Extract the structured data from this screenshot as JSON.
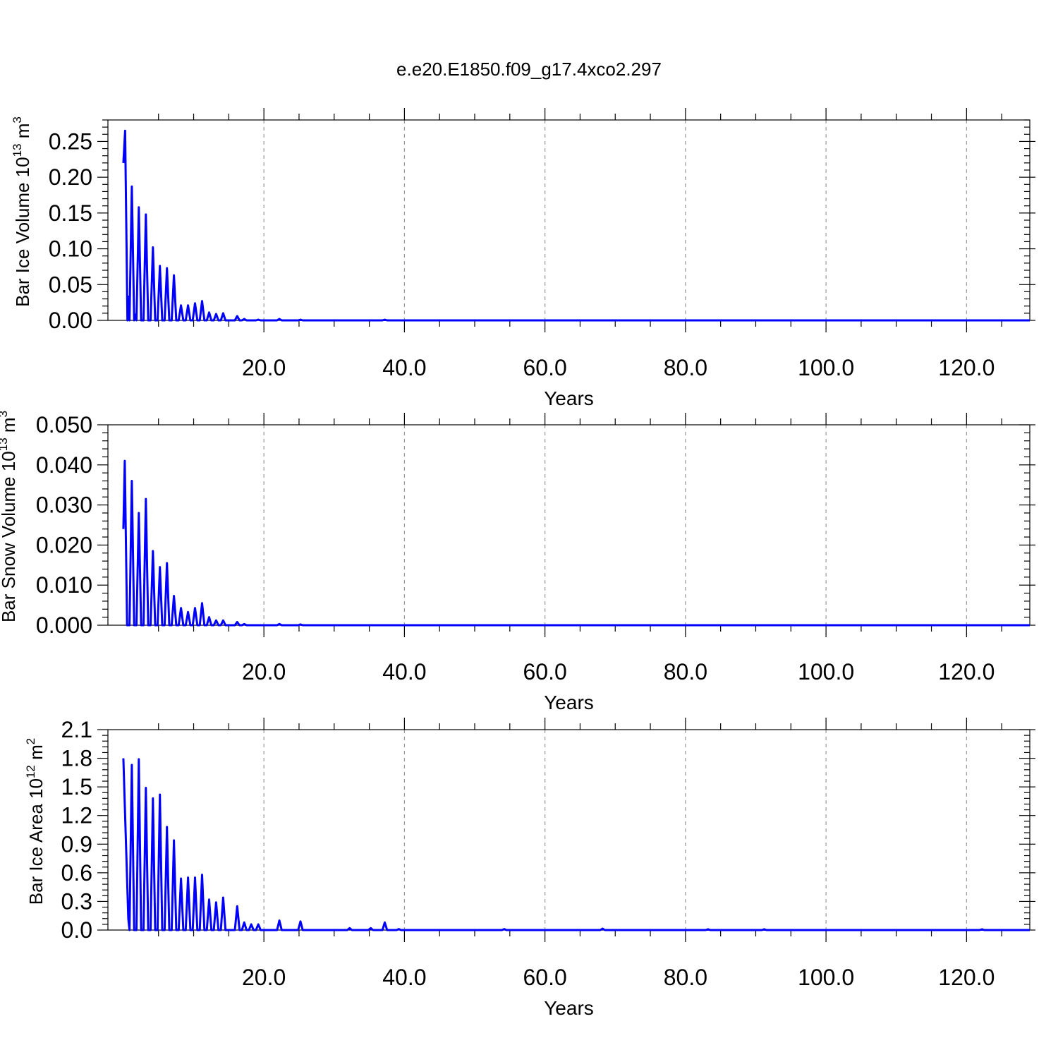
{
  "title": "e.e20.E1850.f09_g17.4xco2.297",
  "chart_data": [
    {
      "type": "line",
      "xlabel": "Years",
      "ylabel": "Bar Ice Volume 10",
      "ylabel_exp": "13",
      "ylabel_unit": " m",
      "ylabel_unit_exp": "3",
      "xlim": [
        -2.2,
        129
      ],
      "ylim": [
        0,
        0.28
      ],
      "xticks": [
        20,
        40,
        60,
        80,
        100,
        120
      ],
      "xtick_labels": [
        "20.0",
        "40.0",
        "60.0",
        "80.0",
        "100.0",
        "120.0"
      ],
      "yticks": [
        0,
        0.05,
        0.1,
        0.15,
        0.2,
        0.25
      ],
      "ytick_labels": [
        "0.00",
        "0.05",
        "0.10",
        "0.15",
        "0.20",
        "0.25"
      ],
      "grid": "vertical dashed",
      "color": "#0000ff",
      "start_value": 0.22,
      "peaks": [
        [
          0.25,
          0.265
        ],
        [
          1.2,
          0.187
        ],
        [
          2.2,
          0.158
        ],
        [
          3.2,
          0.148
        ],
        [
          4.2,
          0.102
        ],
        [
          5.2,
          0.076
        ],
        [
          6.2,
          0.073
        ],
        [
          7.2,
          0.063
        ],
        [
          8.2,
          0.021
        ],
        [
          9.2,
          0.021
        ],
        [
          10.2,
          0.024
        ],
        [
          11.2,
          0.027
        ],
        [
          12.2,
          0.011
        ],
        [
          13.2,
          0.009
        ],
        [
          14.2,
          0.01
        ],
        [
          16.2,
          0.006
        ],
        [
          17.2,
          0.002
        ],
        [
          19.2,
          0.001
        ],
        [
          22.2,
          0.002
        ],
        [
          25.2,
          0.001
        ],
        [
          37.2,
          0.001
        ]
      ],
      "troughs": [
        [
          0.75,
          0.033
        ],
        [
          1.7,
          0.008
        ]
      ]
    },
    {
      "type": "line",
      "xlabel": "Years",
      "ylabel": "Bar Snow Volume 10",
      "ylabel_exp": "13",
      "ylabel_unit": " m",
      "ylabel_unit_exp": "3",
      "xlim": [
        -2.2,
        129
      ],
      "ylim": [
        0,
        0.05
      ],
      "xticks": [
        20,
        40,
        60,
        80,
        100,
        120
      ],
      "xtick_labels": [
        "20.0",
        "40.0",
        "60.0",
        "80.0",
        "100.0",
        "120.0"
      ],
      "yticks": [
        0,
        0.01,
        0.02,
        0.03,
        0.04,
        0.05
      ],
      "ytick_labels": [
        "0.000",
        "0.010",
        "0.020",
        "0.030",
        "0.040",
        "0.050"
      ],
      "grid": "vertical dashed",
      "color": "#0000ff",
      "start_value": 0.024,
      "peaks": [
        [
          0.2,
          0.041
        ],
        [
          1.2,
          0.036
        ],
        [
          2.2,
          0.028
        ],
        [
          3.2,
          0.0315
        ],
        [
          4.2,
          0.0185
        ],
        [
          5.2,
          0.0145
        ],
        [
          6.2,
          0.0155
        ],
        [
          7.2,
          0.0073
        ],
        [
          8.2,
          0.0043
        ],
        [
          9.2,
          0.0033
        ],
        [
          10.2,
          0.0043
        ],
        [
          11.2,
          0.0055
        ],
        [
          12.2,
          0.002
        ],
        [
          13.2,
          0.0012
        ],
        [
          14.2,
          0.0012
        ],
        [
          16.2,
          0.0008
        ],
        [
          17.2,
          0.0003
        ],
        [
          22.2,
          0.0003
        ],
        [
          25.2,
          0.0002
        ]
      ],
      "troughs": []
    },
    {
      "type": "line",
      "xlabel": "Years",
      "ylabel": "Bar Ice Area 10",
      "ylabel_exp": "12",
      "ylabel_unit": " m",
      "ylabel_unit_exp": "2",
      "xlim": [
        -2.2,
        129
      ],
      "ylim": [
        0,
        2.1
      ],
      "xticks": [
        20,
        40,
        60,
        80,
        100,
        120
      ],
      "xtick_labels": [
        "20.0",
        "40.0",
        "60.0",
        "80.0",
        "100.0",
        "120.0"
      ],
      "yticks": [
        0,
        0.3,
        0.6,
        0.9,
        1.2,
        1.5,
        1.8,
        2.1
      ],
      "ytick_labels": [
        "0.0",
        "0.3",
        "0.6",
        "0.9",
        "1.2",
        "1.5",
        "1.8",
        "2.1"
      ],
      "grid": "vertical dashed",
      "color": "#0000ff",
      "start_value": 1.8,
      "peaks": [
        [
          1.2,
          1.73
        ],
        [
          2.2,
          1.79
        ],
        [
          3.2,
          1.49
        ],
        [
          4.2,
          1.38
        ],
        [
          5.2,
          1.42
        ],
        [
          6.2,
          1.08
        ],
        [
          7.2,
          0.94
        ],
        [
          8.2,
          0.54
        ],
        [
          9.2,
          0.55
        ],
        [
          10.2,
          0.55
        ],
        [
          11.2,
          0.58
        ],
        [
          12.2,
          0.32
        ],
        [
          13.2,
          0.29
        ],
        [
          14.2,
          0.34
        ],
        [
          16.2,
          0.25
        ],
        [
          17.2,
          0.08
        ],
        [
          18.2,
          0.06
        ],
        [
          19.2,
          0.06
        ],
        [
          22.2,
          0.1
        ],
        [
          25.2,
          0.09
        ],
        [
          32.2,
          0.02
        ],
        [
          35.2,
          0.02
        ],
        [
          37.2,
          0.08
        ],
        [
          39.2,
          0.01
        ],
        [
          54.2,
          0.01
        ],
        [
          68.2,
          0.015
        ],
        [
          83.2,
          0.008
        ],
        [
          91.2,
          0.008
        ],
        [
          122.2,
          0.008
        ]
      ],
      "troughs": [
        [
          0.7,
          0.12
        ]
      ]
    }
  ]
}
